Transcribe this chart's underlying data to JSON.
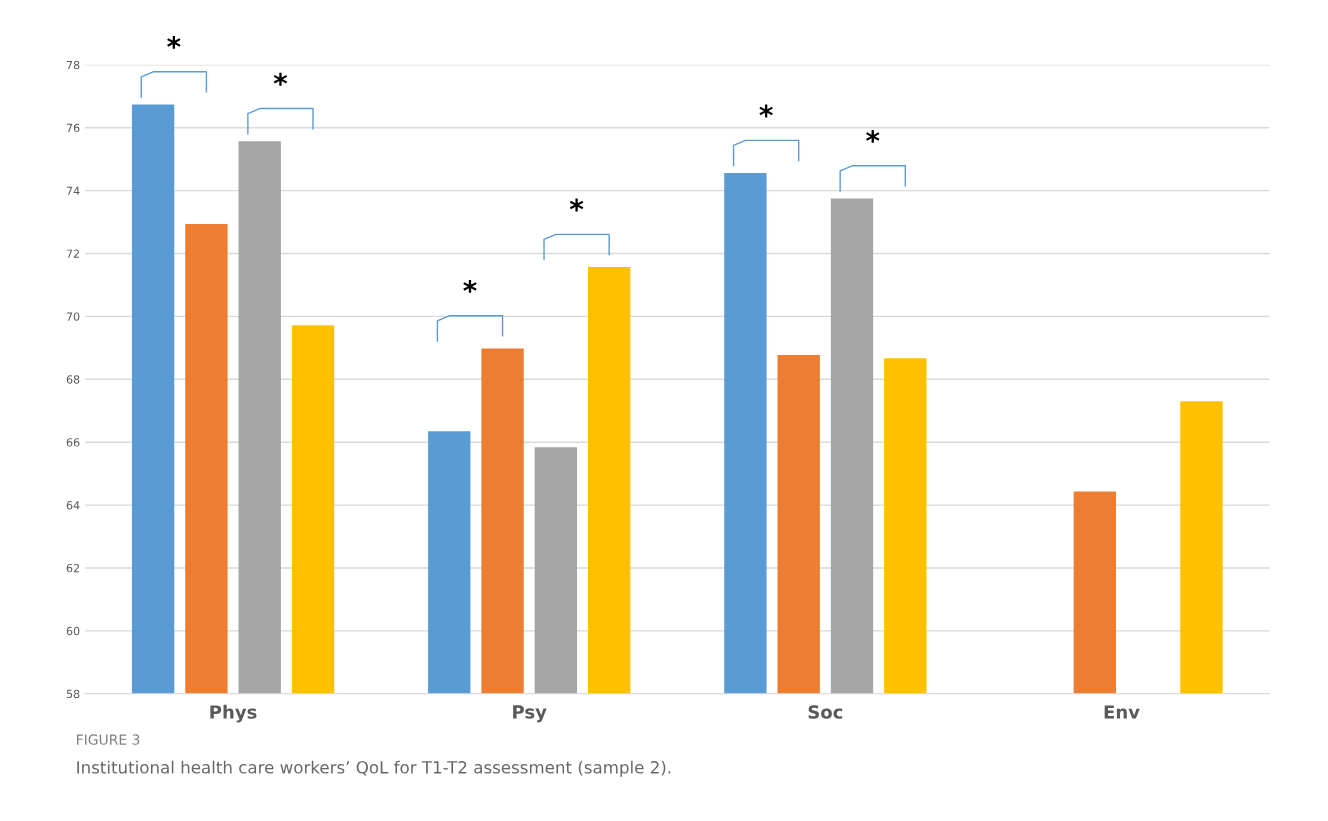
{
  "chart_data": {
    "type": "bar",
    "title": "FIGURE 3",
    "subtitle": "Institutional health care workers’ QoL for T1-T2 assessment (sample 2).",
    "categories": [
      "Phys",
      "Psy",
      "Soc",
      "Env"
    ],
    "series": [
      {
        "color": "#5b9bd5",
        "values": [
          76.74,
          66.35,
          74.56,
          null
        ]
      },
      {
        "color": "#ed7d31",
        "values": [
          72.94,
          68.98,
          68.77,
          64.43
        ]
      },
      {
        "color": "#a5a5a5",
        "values": [
          75.57,
          65.84,
          73.75,
          null
        ]
      },
      {
        "color": "#ffc000",
        "values": [
          69.72,
          71.57,
          68.67,
          67.3
        ]
      }
    ],
    "ylim": [
      58,
      78
    ],
    "yticks": [
      58,
      60,
      62,
      64,
      66,
      68,
      70,
      72,
      74,
      76,
      78
    ],
    "grid": "y",
    "legend": false,
    "annotations": [
      "*",
      "*",
      "*",
      "*",
      "*",
      "*"
    ]
  }
}
